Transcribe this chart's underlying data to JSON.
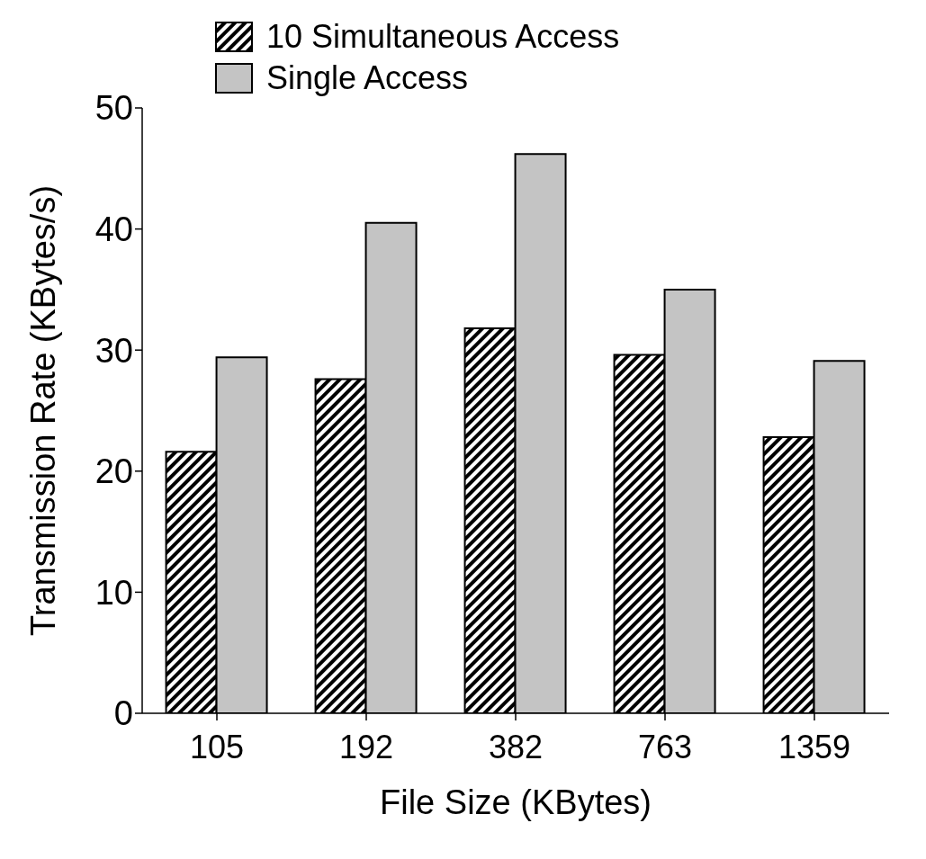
{
  "chart_data": {
    "type": "bar",
    "xlabel": "File Size (KBytes)",
    "ylabel": "Transmission Rate (KBytes/s)",
    "categories": [
      "105",
      "192",
      "382",
      "763",
      "1359"
    ],
    "series": [
      {
        "name": "10 Simultaneous Access",
        "color": "#000000",
        "values": [
          21.6,
          27.6,
          31.8,
          29.6,
          22.8
        ]
      },
      {
        "name": "Single Access",
        "color": "#c4c4c4",
        "values": [
          29.4,
          40.5,
          46.2,
          35.0,
          29.1
        ]
      }
    ],
    "ylim": [
      0,
      50
    ],
    "yticks": [
      0,
      10,
      20,
      30,
      40,
      50
    ],
    "grid": false,
    "legend": "top left"
  }
}
